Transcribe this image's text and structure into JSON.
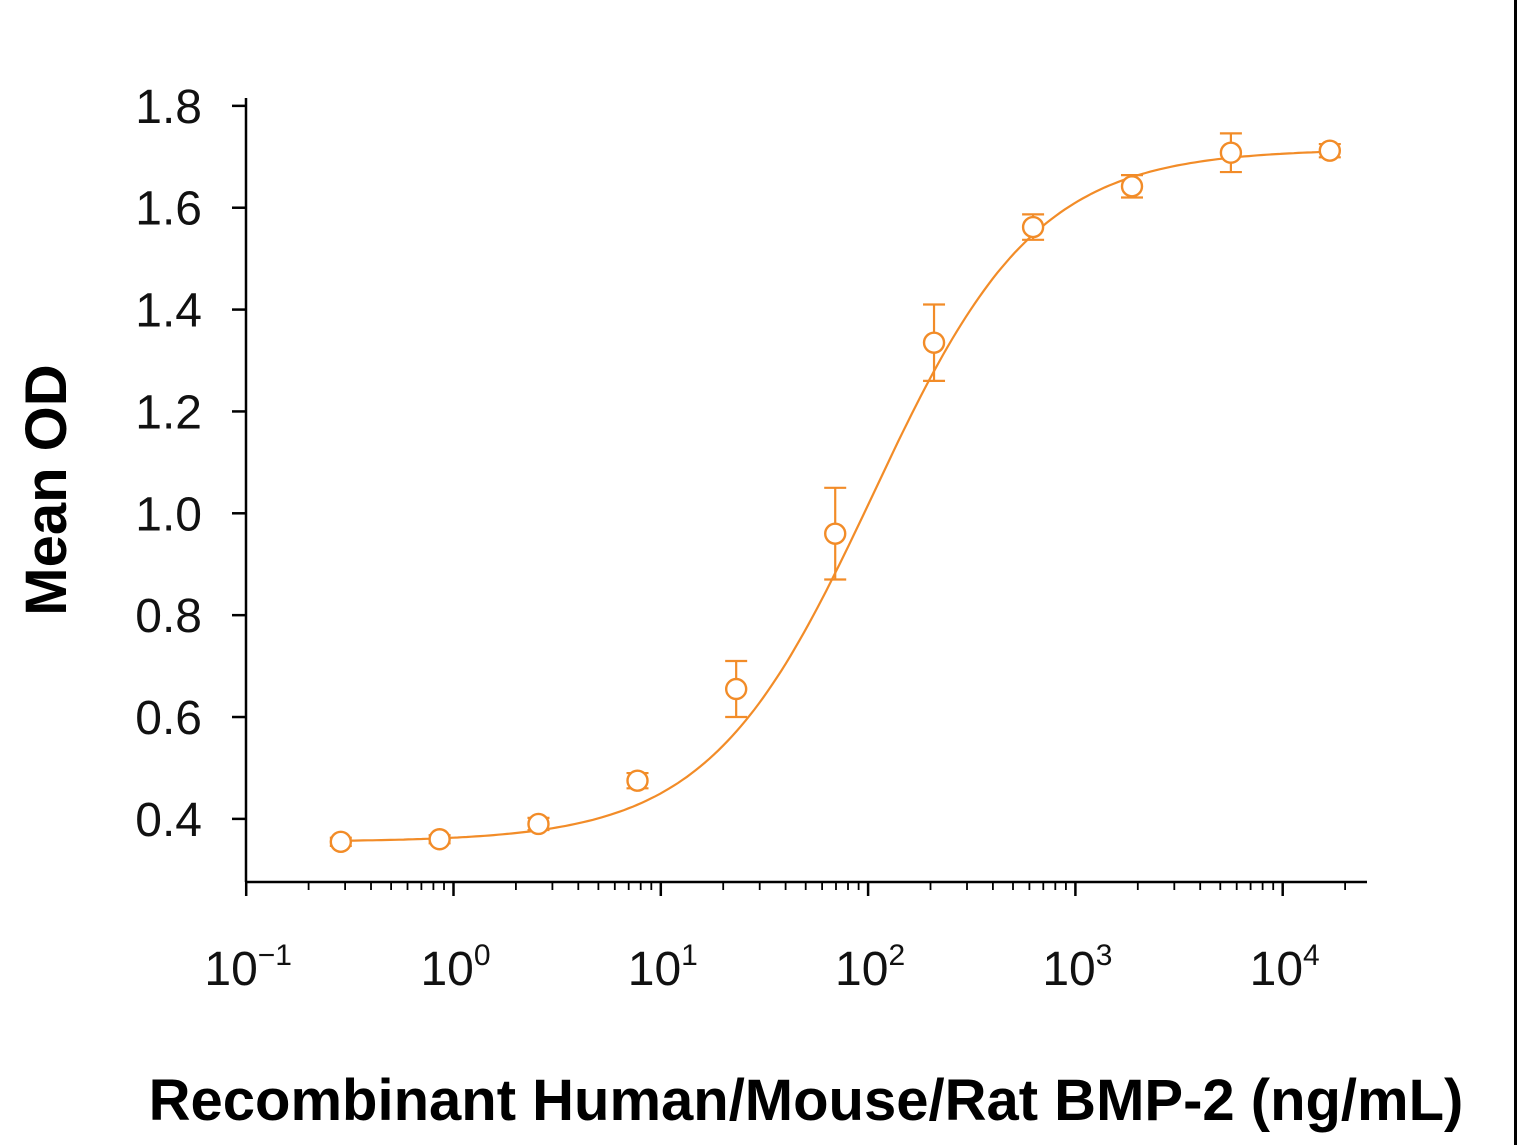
{
  "chart_data": {
    "type": "scatter",
    "xlabel": "Recombinant Human/Mouse/Rat BMP-2 (ng/mL)",
    "ylabel": "Mean OD",
    "x_scale": "log",
    "xlim": [
      0.1,
      25000
    ],
    "ylim": [
      0.29,
      1.82
    ],
    "y_ticks": [
      "1.8",
      "1.6",
      "1.4",
      "1.2",
      "1.0",
      "0.8",
      "0.6",
      "0.4"
    ],
    "x_ticks": [
      {
        "base": "10",
        "exp": "−1"
      },
      {
        "base": "10",
        "exp": "0"
      },
      {
        "base": "10",
        "exp": "1"
      },
      {
        "base": "10",
        "exp": "2"
      },
      {
        "base": "10",
        "exp": "3"
      },
      {
        "base": "10",
        "exp": "4"
      }
    ],
    "grid": false,
    "legend": "none",
    "color": "#F28C28",
    "points": [
      {
        "x": 0.286,
        "y": 0.355,
        "err": 0.008
      },
      {
        "x": 0.857,
        "y": 0.36,
        "err": 0.008
      },
      {
        "x": 2.57,
        "y": 0.39,
        "err": 0.012
      },
      {
        "x": 7.72,
        "y": 0.475,
        "err": 0.015
      },
      {
        "x": 23.1,
        "y": 0.655,
        "err": 0.055
      },
      {
        "x": 69.4,
        "y": 0.96,
        "err": 0.09
      },
      {
        "x": 208,
        "y": 1.335,
        "err": 0.075
      },
      {
        "x": 625,
        "y": 1.562,
        "err": 0.025
      },
      {
        "x": 1875,
        "y": 1.642,
        "err": 0.022
      },
      {
        "x": 5625,
        "y": 1.708,
        "err": 0.038
      },
      {
        "x": 16875,
        "y": 1.712,
        "err": 0.013
      }
    ],
    "fit": {
      "model": "4PL",
      "bottom": 0.355,
      "top": 1.715,
      "ec50": 105,
      "hill": 1.1
    }
  }
}
